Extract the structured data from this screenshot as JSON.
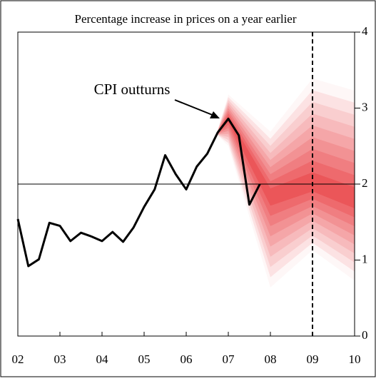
{
  "chart_data": {
    "type": "fan",
    "title": "Percentage increase in prices on a year earlier",
    "annotation": "CPI outturns",
    "xlim": [
      2002,
      2010
    ],
    "xticks": [
      {
        "value": 2002,
        "label": "02"
      },
      {
        "value": 2003,
        "label": "03"
      },
      {
        "value": 2004,
        "label": "04"
      },
      {
        "value": 2005,
        "label": "05"
      },
      {
        "value": 2006,
        "label": "06"
      },
      {
        "value": 2007,
        "label": "07"
      },
      {
        "value": 2008,
        "label": "08"
      },
      {
        "value": 2009,
        "label": "09"
      },
      {
        "value": 2010,
        "label": "10"
      }
    ],
    "ylim": [
      0,
      4
    ],
    "yticks": [
      0,
      1,
      2,
      3,
      4
    ],
    "reference_line": 2,
    "marker_x": 2009,
    "series": [
      {
        "color": "#000000",
        "x": [
          2002,
          2002.25,
          2002.5,
          2002.75,
          2003,
          2003.25,
          2003.5,
          2003.75,
          2004,
          2004.25,
          2004.5,
          2004.75,
          2005,
          2005.25,
          2005.5,
          2005.75,
          2006,
          2006.25,
          2006.5,
          2006.75,
          2007,
          2007.25,
          2007.5,
          2007.75
        ],
        "values": [
          1.54,
          0.92,
          1.01,
          1.49,
          1.45,
          1.25,
          1.36,
          1.31,
          1.25,
          1.37,
          1.24,
          1.43,
          1.7,
          1.93,
          2.38,
          2.13,
          1.93,
          2.23,
          2.4,
          2.68,
          2.86,
          2.64,
          1.73,
          2.0
        ]
      }
    ],
    "fan": {
      "color": "#e8383c",
      "x": [
        2006.75,
        2007,
        2008,
        2009,
        2010
      ],
      "central": [
        2.68,
        2.86,
        1.85,
        2.0,
        1.8
      ],
      "upper": [
        2.72,
        3.18,
        2.69,
        3.39,
        3.23
      ],
      "lower": [
        2.64,
        2.5,
        0.64,
        1.13,
        0.73
      ]
    }
  }
}
